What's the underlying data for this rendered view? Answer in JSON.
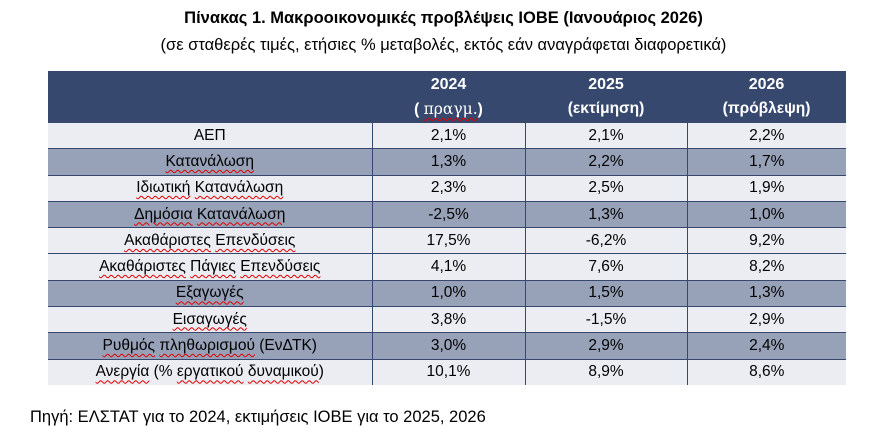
{
  "title": "Πίνακας 1. Μακροοικονομικές προβλέψεις ΙΟΒΕ (Ιανουάριος 2026)",
  "subtitle": "(σε σταθερές τιμές, ετήσιες % μεταβολές, εκτός εάν αναγράφεται διαφορετικά)",
  "source_note": "Πηγή: ΕΛΣΤΑΤ για το 2024, εκτιμήσεις ΙΟΒΕ για το 2025, 2026",
  "colors": {
    "header_bg": "#36486E",
    "header_text": "#FFFFFF",
    "border": "#36486E",
    "row_light": "#EBEDF2",
    "row_dark": "#97A2B8",
    "body_text": "#000000",
    "squiggle": "#E00000"
  },
  "table": {
    "columns": [
      {
        "year": "2024",
        "note_parts": [
          {
            "text": "( "
          },
          {
            "text": "πραγμ.",
            "serif": true,
            "misspelled": true
          },
          {
            "text": ")"
          }
        ]
      },
      {
        "year": "2025",
        "note_parts": [
          {
            "text": "(εκτίμηση)"
          }
        ]
      },
      {
        "year": "2026",
        "note_parts": [
          {
            "text": "(πρόβλεψη)"
          }
        ]
      }
    ],
    "rows": [
      {
        "shaded": false,
        "label_parts": [
          {
            "text": "ΑΕΠ"
          }
        ],
        "values": [
          "2,1%",
          "2,1%",
          "2,2%"
        ]
      },
      {
        "shaded": true,
        "label_parts": [
          {
            "text": "Κατανάλωση",
            "misspelled": true
          }
        ],
        "values": [
          "1,3%",
          "2,2%",
          "1,7%"
        ]
      },
      {
        "shaded": false,
        "label_parts": [
          {
            "text": "Ιδιωτική",
            "misspelled": true
          },
          {
            "text": " "
          },
          {
            "text": "Κατανάλωση",
            "misspelled": true
          }
        ],
        "values": [
          "2,3%",
          "2,5%",
          "1,9%"
        ]
      },
      {
        "shaded": true,
        "label_parts": [
          {
            "text": "Δημόσια",
            "misspelled": true
          },
          {
            "text": " "
          },
          {
            "text": "Κατανάλωση",
            "misspelled": true
          }
        ],
        "values": [
          "-2,5%",
          "1,3%",
          "1,0%"
        ]
      },
      {
        "shaded": false,
        "label_parts": [
          {
            "text": "Ακαθάριστες",
            "misspelled": true
          },
          {
            "text": " "
          },
          {
            "text": "Επενδύσεις",
            "misspelled": true
          }
        ],
        "values": [
          "17,5%",
          "-6,2%",
          "9,2%"
        ]
      },
      {
        "shaded": false,
        "label_parts": [
          {
            "text": "Ακαθάριστες",
            "misspelled": true
          },
          {
            "text": " "
          },
          {
            "text": "Πάγιες",
            "misspelled": true
          },
          {
            "text": " "
          },
          {
            "text": "Επενδύσεις",
            "misspelled": true
          }
        ],
        "values": [
          "4,1%",
          "7,6%",
          "8,2%"
        ]
      },
      {
        "shaded": true,
        "label_parts": [
          {
            "text": "Εξαγωγές",
            "misspelled": true
          }
        ],
        "values": [
          "1,0%",
          "1,5%",
          "1,3%"
        ]
      },
      {
        "shaded": false,
        "label_parts": [
          {
            "text": "Εισαγωγές",
            "misspelled": true
          }
        ],
        "values": [
          "3,8%",
          "-1,5%",
          "2,9%"
        ]
      },
      {
        "shaded": true,
        "label_parts": [
          {
            "text": "Ρυθμός",
            "misspelled": true
          },
          {
            "text": " "
          },
          {
            "text": "πληθωρισμού",
            "misspelled": true
          },
          {
            "text": " (ΕνΔΤΚ)"
          }
        ],
        "values": [
          "3,0%",
          "2,9%",
          "2,4%"
        ]
      },
      {
        "shaded": false,
        "label_parts": [
          {
            "text": "Ανεργία",
            "misspelled": true
          },
          {
            "text": " (% "
          },
          {
            "text": "εργατικού",
            "misspelled": true
          },
          {
            "text": " "
          },
          {
            "text": "δυναμικού",
            "misspelled": true
          },
          {
            "text": ")"
          }
        ],
        "values": [
          "10,1%",
          "8,9%",
          "8,6%"
        ]
      }
    ]
  }
}
